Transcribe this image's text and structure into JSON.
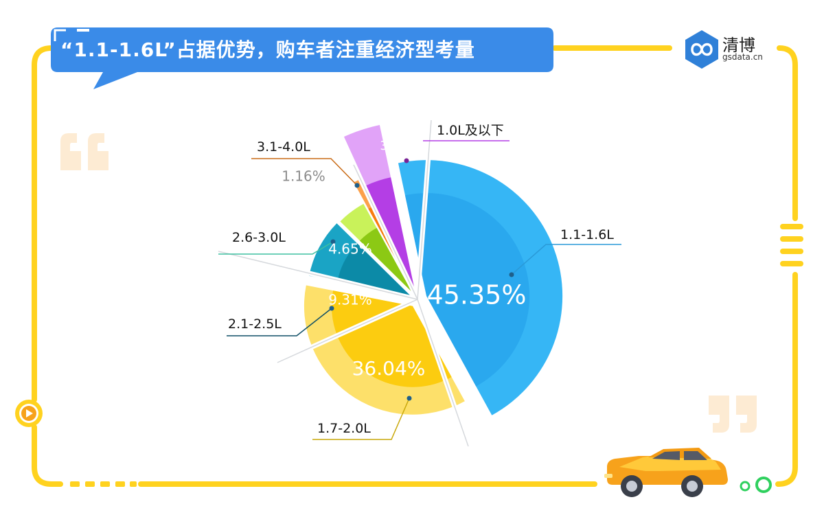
{
  "header": {
    "title": "“1.1-1.6L”占据优势，购车者注重经济型考量"
  },
  "logo": {
    "name": "清博",
    "url": "gsdata.cn",
    "color": "#2f80d8"
  },
  "colors": {
    "frame": "#ffd21f",
    "title_bubble": "#3a8be8",
    "quote_marks": "#fdebd3"
  },
  "icons": [
    "quote-open-icon",
    "quote-close-icon",
    "play-icon",
    "car-icon",
    "logo-icon"
  ],
  "chart_data": {
    "type": "pie",
    "title": "",
    "slices": [
      {
        "label": "1.1-1.6L",
        "value": 45.35,
        "pct_label": "45.35%",
        "color": "#36b6f5",
        "inner_color": "#2aa8ee",
        "line_color": "#2a9ad8"
      },
      {
        "label": "1.7-2.0L",
        "value": 36.04,
        "pct_label": "36.04%",
        "color": "#fde06a",
        "inner_color": "#fccc10",
        "line_color": "#c9a80b"
      },
      {
        "label": "2.1-2.5L",
        "value": 9.31,
        "pct_label": "9.31%",
        "color": "#1aa4c5",
        "inner_color": "#0c8aa7",
        "line_color": "#0f4f66"
      },
      {
        "label": "2.6-3.0L",
        "value": 4.65,
        "pct_label": "4.65%",
        "color": "#c9f25a",
        "inner_color": "#8cc914",
        "line_color": "#3fc0a0"
      },
      {
        "label": "3.1-4.0L",
        "value": 1.16,
        "pct_label": "1.16%",
        "color": "#fba04a",
        "inner_color": "#f77c0f",
        "line_color": "#c96a15"
      },
      {
        "label": "1.0L及以下",
        "value": 3.49,
        "pct_label": "3.49%",
        "color": "#e1a3f8",
        "inner_color": "#b43ee5",
        "line_color": "#b43ee5"
      }
    ]
  }
}
